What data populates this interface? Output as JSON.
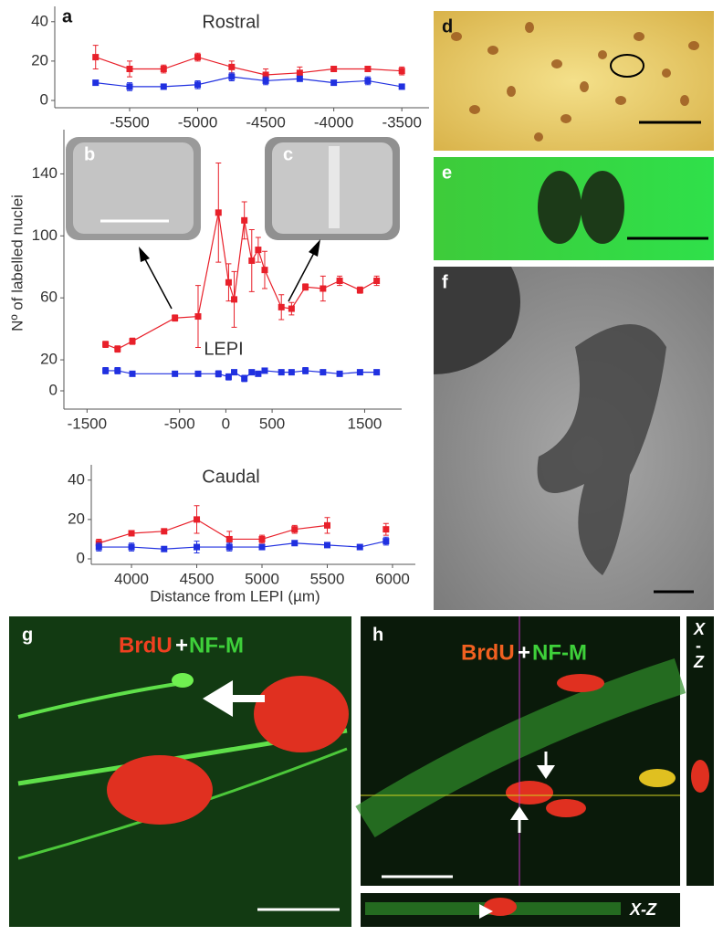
{
  "chart_data": [
    {
      "type": "line",
      "panel": "a",
      "title": "Rostral",
      "x": [
        -5750,
        -5500,
        -5250,
        -5000,
        -4750,
        -4500,
        -4250,
        -4000,
        -3750,
        -3500
      ],
      "series": [
        {
          "color": "#e8202a",
          "values": [
            22,
            16,
            16,
            22,
            17,
            13,
            14,
            16,
            16,
            15
          ],
          "errors": [
            6,
            4,
            2,
            2,
            3,
            3,
            3,
            1,
            1,
            2
          ]
        },
        {
          "color": "#2030e0",
          "values": [
            9,
            7,
            7,
            8,
            12,
            10,
            11,
            9,
            10,
            7
          ],
          "errors": [
            1,
            2,
            1,
            2,
            2,
            2,
            1,
            1,
            2,
            1
          ]
        }
      ],
      "xlim": [
        -6050,
        -3300
      ],
      "xticks": [
        -5500,
        -5000,
        -4500,
        -4000,
        -3500
      ],
      "ylim": [
        0,
        45
      ],
      "yticks": [
        0,
        20,
        40
      ]
    },
    {
      "type": "line",
      "title": "LEPI",
      "y_label": "Nº of labelled nuclei",
      "x": [
        -1300,
        -1170,
        -1010,
        -550,
        -300,
        -80,
        30,
        90,
        200,
        280,
        350,
        420,
        600,
        710,
        860,
        1050,
        1230,
        1450,
        1630
      ],
      "series": [
        {
          "color": "#e8202a",
          "values": [
            30,
            27,
            32,
            47,
            48,
            115,
            70,
            59,
            110,
            84,
            91,
            78,
            54,
            53,
            67,
            66,
            71,
            65,
            71
          ],
          "errors": [
            2,
            2,
            2,
            2,
            20,
            32,
            12,
            18,
            12,
            20,
            8,
            12,
            8,
            4,
            2,
            8,
            3,
            2,
            3
          ]
        },
        {
          "color": "#2030e0",
          "values": [
            13,
            13,
            11,
            11,
            11,
            11,
            9,
            12,
            8,
            12,
            11,
            13,
            12,
            12,
            13,
            12,
            11,
            12,
            12
          ],
          "errors": [
            2,
            2,
            1,
            1,
            1,
            2,
            2,
            1,
            2,
            1,
            1,
            1,
            1,
            1,
            2,
            1,
            1,
            1,
            1
          ]
        }
      ],
      "xlim": [
        -1750,
        1900
      ],
      "xticks": [
        -1500,
        -500,
        0,
        500,
        1500
      ],
      "ylim": [
        0,
        165
      ],
      "yticks": [
        0,
        20,
        60,
        100,
        140
      ]
    },
    {
      "type": "line",
      "title": "Caudal",
      "x_label": "Distance from LEPI (µm)",
      "x": [
        3750,
        4000,
        4250,
        4500,
        4750,
        5000,
        5250,
        5500,
        5750,
        5950
      ],
      "series": [
        {
          "color": "#e8202a",
          "values": [
            8,
            13,
            14,
            20,
            10,
            10,
            15,
            17,
            null,
            15
          ],
          "errors": [
            2,
            1,
            1,
            7,
            4,
            2,
            2,
            4,
            null,
            3
          ]
        },
        {
          "color": "#2030e0",
          "values": [
            6,
            6,
            5,
            6,
            6,
            6,
            8,
            7,
            6,
            9
          ],
          "errors": [
            2,
            2,
            1,
            3,
            2,
            1,
            1,
            1,
            1,
            2
          ]
        }
      ],
      "xlim": [
        3692,
        6175
      ],
      "xticks": [
        4000,
        4500,
        5000,
        5500,
        6000
      ],
      "ylim": [
        0,
        45
      ],
      "yticks": [
        0,
        20,
        40
      ]
    }
  ],
  "panels": {
    "b": "b",
    "c": "c",
    "d": "d",
    "e": "e",
    "f": "f",
    "g": "g",
    "h": "h"
  },
  "stain_g": {
    "brdu": "BrdU",
    "plus": "+",
    "nfm": "NF-M"
  },
  "stain_h": {
    "brdu": "BrdU",
    "plus": "+",
    "nfm": "NF-M"
  },
  "xz_side": {
    "x": "X",
    "dash": "-",
    "z": "Z"
  },
  "xz_bottom": "X-Z"
}
